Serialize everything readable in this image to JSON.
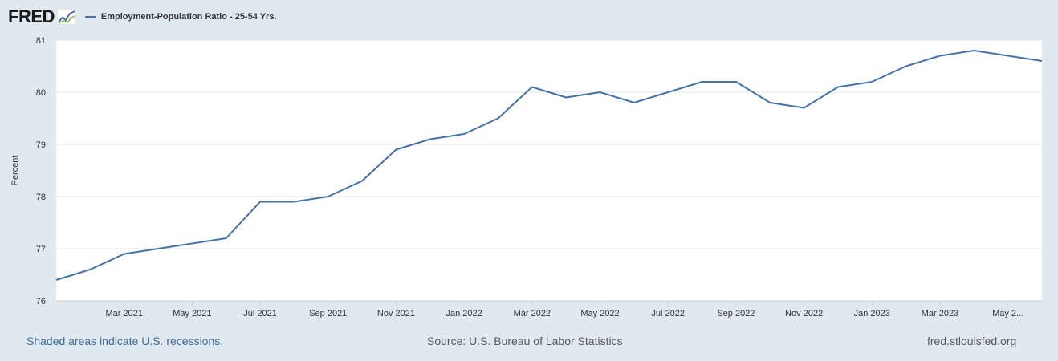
{
  "header": {
    "logo_text": "FRED",
    "legend_label": "Employment-Population Ratio - 25-54 Yrs."
  },
  "footer": {
    "recessions_note": "Shaded areas indicate U.S. recessions.",
    "source": "Source: U.S. Bureau of Labor Statistics",
    "site": "fred.stlouisfed.org"
  },
  "colors": {
    "series": "#4572a7",
    "background": "#e1e9f0",
    "plot_background": "#ffffff",
    "gridline": "#e6e6e6"
  },
  "chart_data": {
    "type": "line",
    "ylabel": "Percent",
    "ylim": [
      76,
      81
    ],
    "yticks": [
      "76",
      "77",
      "78",
      "79",
      "80",
      "81"
    ],
    "grid": true,
    "x": [
      "2021-01",
      "2021-02",
      "2021-03",
      "2021-04",
      "2021-05",
      "2021-06",
      "2021-07",
      "2021-08",
      "2021-09",
      "2021-10",
      "2021-11",
      "2021-12",
      "2022-01",
      "2022-02",
      "2022-03",
      "2022-04",
      "2022-05",
      "2022-06",
      "2022-07",
      "2022-08",
      "2022-09",
      "2022-10",
      "2022-11",
      "2022-12",
      "2023-01",
      "2023-02",
      "2023-03",
      "2023-04",
      "2023-05",
      "2023-06"
    ],
    "xtick_labels": [
      "Mar 2021",
      "May 2021",
      "Jul 2021",
      "Sep 2021",
      "Nov 2021",
      "Jan 2022",
      "Mar 2022",
      "May 2022",
      "Jul 2022",
      "Sep 2022",
      "Nov 2022",
      "Jan 2023",
      "Mar 2023",
      "May 2..."
    ],
    "xtick_positions": [
      "2021-03",
      "2021-05",
      "2021-07",
      "2021-09",
      "2021-11",
      "2022-01",
      "2022-03",
      "2022-05",
      "2022-07",
      "2022-09",
      "2022-11",
      "2023-01",
      "2023-03",
      "2023-05"
    ],
    "series": [
      {
        "name": "Employment-Population Ratio - 25-54 Yrs.",
        "values": [
          76.4,
          76.6,
          76.9,
          77.0,
          77.1,
          77.2,
          77.9,
          77.9,
          78.0,
          78.3,
          78.9,
          79.1,
          79.2,
          79.5,
          80.1,
          79.9,
          80.0,
          79.8,
          80.0,
          80.2,
          80.2,
          79.8,
          79.7,
          80.1,
          80.2,
          80.5,
          80.7,
          80.8,
          80.7,
          80.6
        ]
      }
    ]
  }
}
